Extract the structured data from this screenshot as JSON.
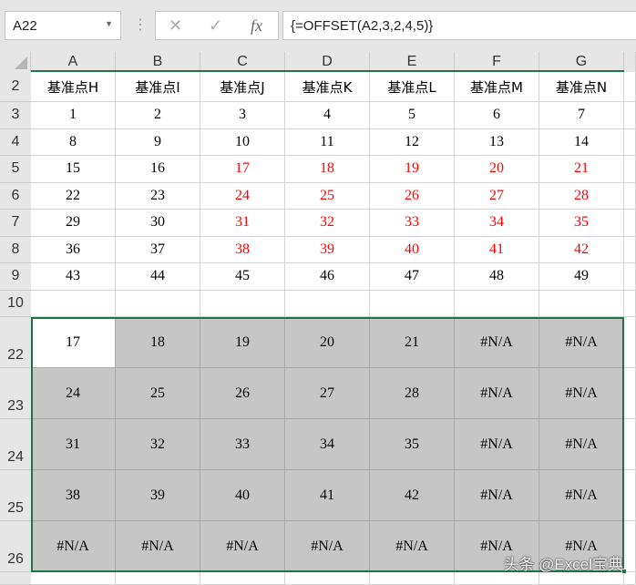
{
  "formula_bar": {
    "name_box": "A22",
    "cancel_icon": "✕",
    "enter_icon": "✓",
    "fx_label": "fx",
    "formula": "{=OFFSET(A2,3,2,4,5)}"
  },
  "columns": [
    "A",
    "B",
    "C",
    "D",
    "E",
    "F",
    "G"
  ],
  "colors": {
    "red": "#ff0000",
    "selection_border": "#217346",
    "selection_fill": "#c6c6c6"
  },
  "rows": [
    {
      "num": "2",
      "header": true,
      "cells": [
        "基准点H",
        "基准点I",
        "基准点J",
        "基准点K",
        "基准点L",
        "基准点M",
        "基准点N"
      ],
      "red": []
    },
    {
      "num": "3",
      "cells": [
        "1",
        "2",
        "3",
        "4",
        "5",
        "6",
        "7"
      ],
      "red": []
    },
    {
      "num": "4",
      "cells": [
        "8",
        "9",
        "10",
        "11",
        "12",
        "13",
        "14"
      ],
      "red": []
    },
    {
      "num": "5",
      "cells": [
        "15",
        "16",
        "17",
        "18",
        "19",
        "20",
        "21"
      ],
      "red": [
        2,
        3,
        4,
        5,
        6
      ]
    },
    {
      "num": "6",
      "cells": [
        "22",
        "23",
        "24",
        "25",
        "26",
        "27",
        "28"
      ],
      "red": [
        2,
        3,
        4,
        5,
        6
      ]
    },
    {
      "num": "7",
      "cells": [
        "29",
        "30",
        "31",
        "32",
        "33",
        "34",
        "35"
      ],
      "red": [
        2,
        3,
        4,
        5,
        6
      ]
    },
    {
      "num": "8",
      "cells": [
        "36",
        "37",
        "38",
        "39",
        "40",
        "41",
        "42"
      ],
      "red": [
        2,
        3,
        4,
        5,
        6
      ]
    },
    {
      "num": "9",
      "cells": [
        "43",
        "44",
        "45",
        "46",
        "47",
        "48",
        "49"
      ],
      "red": []
    },
    {
      "num": "10",
      "cells": [
        "",
        "",
        "",
        "",
        "",
        "",
        ""
      ],
      "red": []
    },
    {
      "num": "22",
      "selected": true,
      "cells": [
        "17",
        "18",
        "19",
        "20",
        "21",
        "#N/A",
        "#N/A"
      ],
      "red": []
    },
    {
      "num": "23",
      "selected": true,
      "cells": [
        "24",
        "25",
        "26",
        "27",
        "28",
        "#N/A",
        "#N/A"
      ],
      "red": []
    },
    {
      "num": "24",
      "selected": true,
      "cells": [
        "31",
        "32",
        "33",
        "34",
        "35",
        "#N/A",
        "#N/A"
      ],
      "red": []
    },
    {
      "num": "25",
      "selected": true,
      "cells": [
        "38",
        "39",
        "40",
        "41",
        "42",
        "#N/A",
        "#N/A"
      ],
      "red": []
    },
    {
      "num": "26",
      "selected": true,
      "cells": [
        "#N/A",
        "#N/A",
        "#N/A",
        "#N/A",
        "#N/A",
        "#N/A",
        "#N/A"
      ],
      "red": []
    }
  ],
  "watermark": "头条 @Excel宝典"
}
